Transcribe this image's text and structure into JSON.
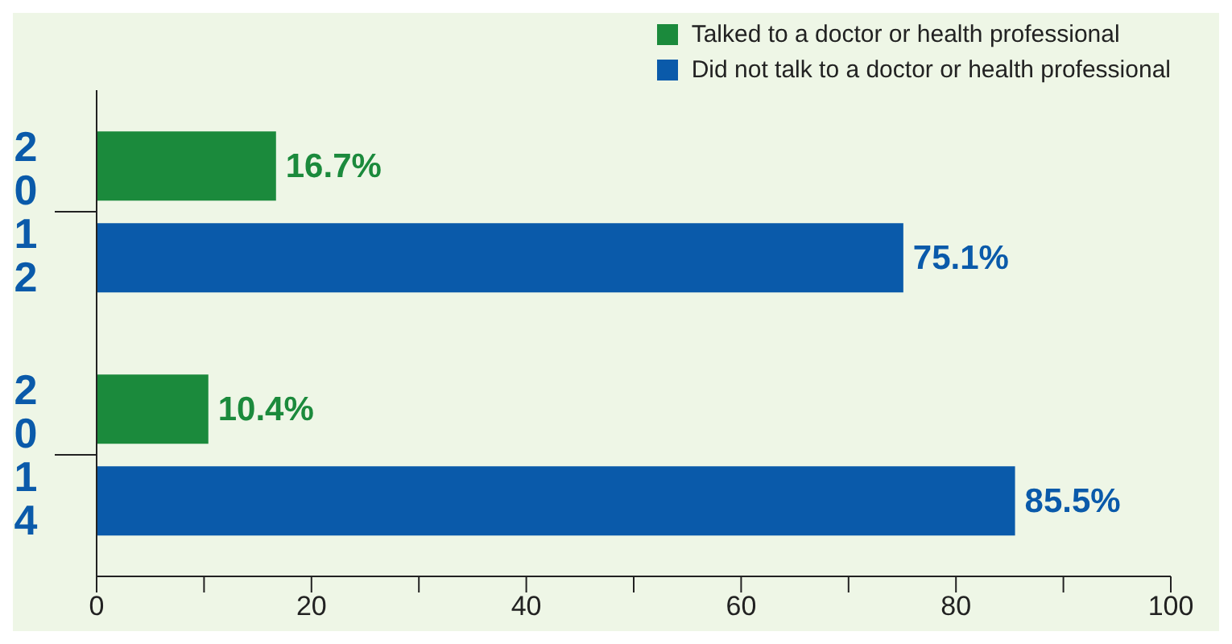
{
  "chart_data": {
    "type": "bar",
    "orientation": "horizontal",
    "categories": [
      "2012",
      "2014"
    ],
    "series": [
      {
        "name": "Talked to a doctor or health professional",
        "color": "#1b8a3c",
        "values": [
          16.7,
          10.4
        ],
        "value_labels": [
          "16.7%",
          "10.4%"
        ]
      },
      {
        "name": "Did not talk to a doctor or health professional",
        "color": "#0a5aaa",
        "values": [
          75.1,
          85.5
        ],
        "value_labels": [
          "75.1%",
          "85.5%"
        ]
      }
    ],
    "xlim": [
      0,
      100
    ],
    "xticks": [
      0,
      {
        "value": 10,
        "label": null
      },
      20,
      {
        "value": 30,
        "label": null
      },
      40,
      {
        "value": 50,
        "label": null
      },
      60,
      {
        "value": 70,
        "label": null
      },
      80,
      {
        "value": 90,
        "label": null
      },
      100
    ],
    "legend": "top right",
    "grid": false
  }
}
